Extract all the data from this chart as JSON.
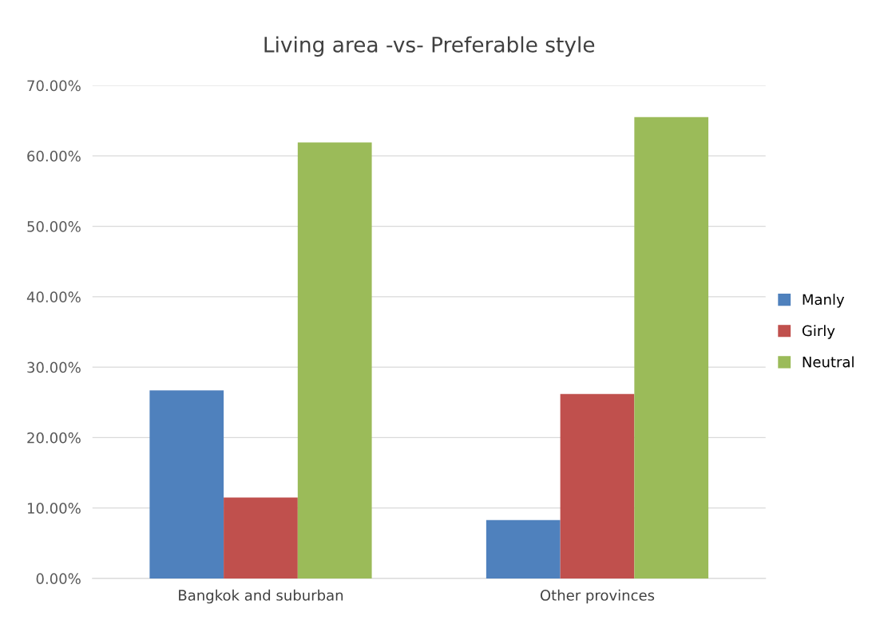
{
  "chart_data": {
    "type": "bar",
    "title": "Living area -vs- Preferable style",
    "categories": [
      "Bangkok and suburban",
      "Other provinces"
    ],
    "series": [
      {
        "name": "Manly",
        "color": "#4f81bd",
        "values": [
          26.7,
          8.3
        ]
      },
      {
        "name": "Girly",
        "color": "#c0504d",
        "values": [
          11.5,
          26.2
        ]
      },
      {
        "name": "Neutral",
        "color": "#9bbb59",
        "values": [
          61.9,
          65.5
        ]
      }
    ],
    "ylim": [
      0,
      70
    ],
    "yticks": [
      {
        "value": 0,
        "label": "0.00%"
      },
      {
        "value": 10,
        "label": "10.00%"
      },
      {
        "value": 20,
        "label": "20.00%"
      },
      {
        "value": 30,
        "label": "30.00%"
      },
      {
        "value": 40,
        "label": "40.00%"
      },
      {
        "value": 50,
        "label": "50.00%"
      },
      {
        "value": 60,
        "label": "60.00%"
      },
      {
        "value": 70,
        "label": "70.00%"
      }
    ],
    "grid": "y",
    "legend": "right"
  }
}
